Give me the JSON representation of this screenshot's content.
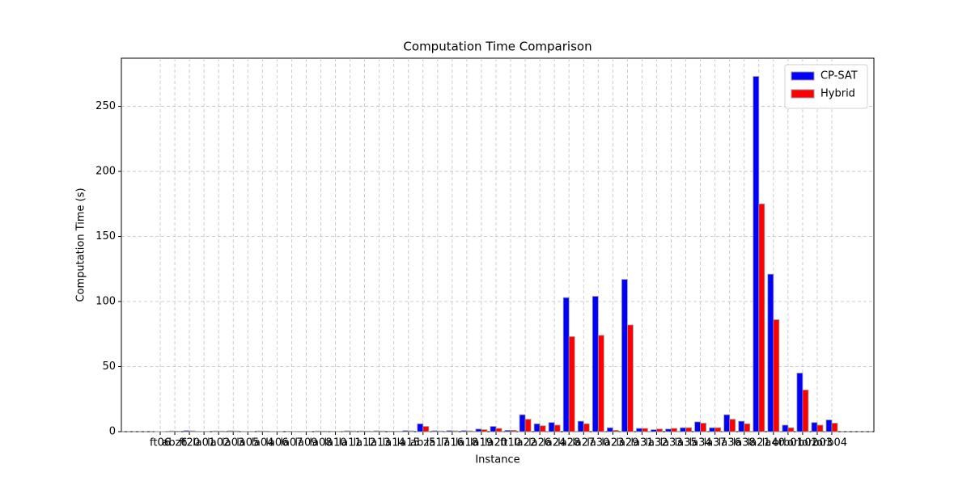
{
  "chart_data": {
    "type": "bar",
    "title": "Computation Time Comparison",
    "xlabel": "Instance",
    "ylabel": "Computation Time (s)",
    "categories": [
      "ft06",
      "abz6",
      "ft20",
      "la01",
      "la02",
      "la03",
      "la05",
      "la04",
      "la06",
      "la07",
      "la09",
      "la08",
      "la10",
      "la11",
      "la12",
      "la13",
      "la14",
      "la15",
      "abz5",
      "la17",
      "la16",
      "la18",
      "la19",
      "la20",
      "ft10",
      "la22",
      "la26",
      "la24",
      "la28",
      "la27",
      "la30",
      "la23",
      "la29",
      "la31",
      "la32",
      "la33",
      "la35",
      "la34",
      "la37",
      "la36",
      "la38",
      "la21",
      "la40",
      "orb01",
      "orb02",
      "orb03",
      "orb04"
    ],
    "series": [
      {
        "name": "CP-SAT",
        "color": "#0000ff",
        "values": [
          0.1,
          0.5,
          0.8,
          0.2,
          0.5,
          0.6,
          0.2,
          0.5,
          0.2,
          0.3,
          0.2,
          0.5,
          0.3,
          0.6,
          0.5,
          0.6,
          0.4,
          0.8,
          6,
          0.7,
          0.8,
          0.8,
          2,
          4,
          1,
          13,
          6,
          7,
          103,
          8,
          104,
          3,
          117,
          2.5,
          1.5,
          2,
          3,
          7.5,
          3,
          13,
          8,
          273,
          121,
          5,
          45,
          7,
          9
        ]
      },
      {
        "name": "Hybrid",
        "color": "#ff0000",
        "values": [
          0.1,
          0.4,
          0.6,
          0.2,
          0.4,
          0.5,
          0.2,
          0.4,
          0.2,
          0.2,
          0.2,
          0.4,
          0.2,
          0.5,
          0.4,
          0.5,
          0.3,
          0.6,
          4,
          0.5,
          0.6,
          0.6,
          1.5,
          2.5,
          1,
          9.5,
          4.5,
          5,
          73,
          6,
          74,
          1,
          82,
          2.5,
          2,
          2.5,
          3,
          6.5,
          3,
          9.5,
          6,
          175,
          86,
          3,
          32,
          5,
          6.5
        ]
      }
    ],
    "ylim": [
      0,
      287
    ],
    "yticks": [
      0,
      50,
      100,
      150,
      200,
      250
    ],
    "grid": true,
    "legend": "upper right"
  }
}
